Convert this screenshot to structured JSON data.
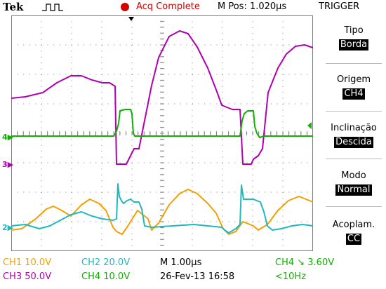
{
  "header": {
    "brand": "Tek",
    "acq_status": "Acq Complete",
    "position": "M Pos: 1.020µs",
    "menu_title": "TRIGGER"
  },
  "colors": {
    "ch1": "#f2a000",
    "ch2": "#20b8c0",
    "ch3": "#b000b0",
    "ch4": "#10b000",
    "status": "#d40000",
    "grid": "#7f7f7f"
  },
  "menu": [
    {
      "label": "Tipo",
      "value": "Borda"
    },
    {
      "label": "Origem",
      "value": "CH4"
    },
    {
      "label": "Inclinação",
      "value": "Descida"
    },
    {
      "label": "Modo",
      "value": "Normal"
    },
    {
      "label": "Acoplam.",
      "value": "CC"
    }
  ],
  "markers": {
    "ch4": "4",
    "ch3": "3",
    "ch2": "2"
  },
  "footer": {
    "ch1_scale": "CH1  10.0V",
    "ch2_scale": "CH2  20.0V",
    "ch3_scale": "CH3  50.0V",
    "ch4_scale": "CH4  10.0V",
    "timebase": "M 1.00µs",
    "date": "26-Fev-13 16:58",
    "trigger_level": "CH4 ↘ 3.60V",
    "frequency": "<10Hz"
  }
}
